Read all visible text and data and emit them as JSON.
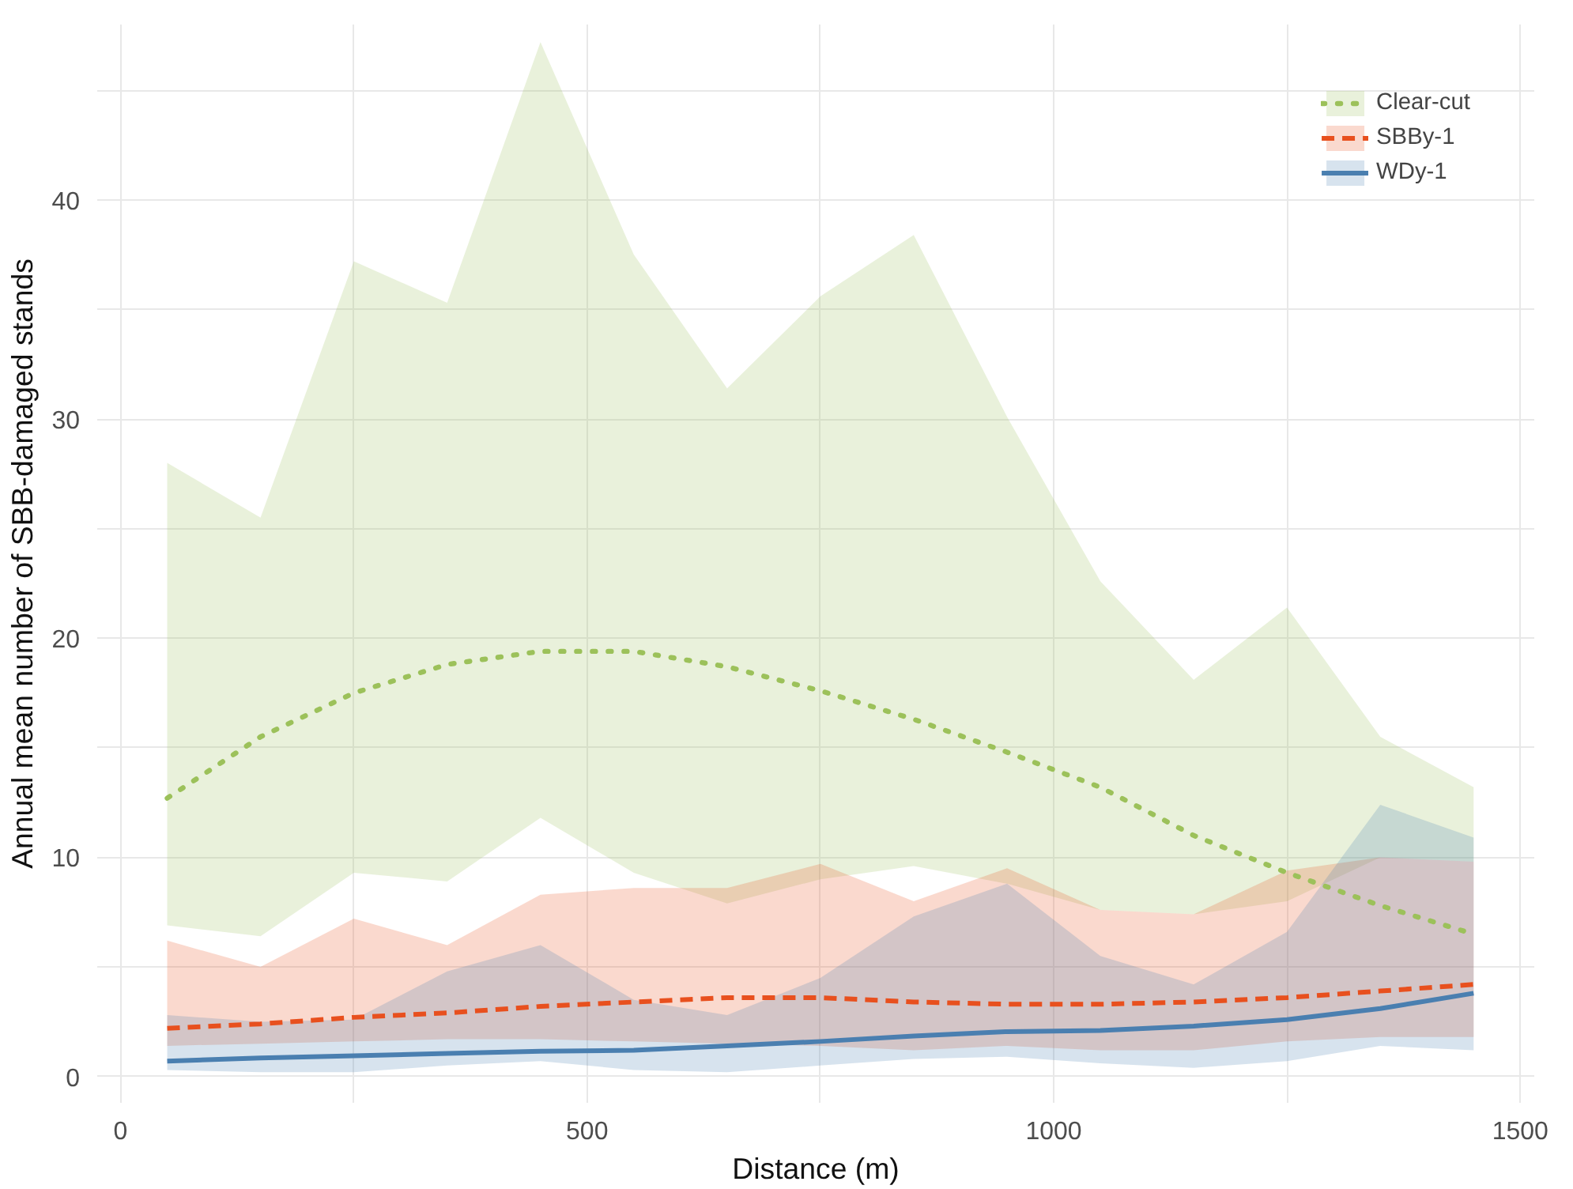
{
  "chart_data": {
    "type": "line",
    "xlabel": "Distance (m)",
    "ylabel": "Annual mean number of SBB-damaged stands",
    "x": [
      50,
      150,
      250,
      350,
      450,
      550,
      650,
      750,
      850,
      950,
      1050,
      1150,
      1250,
      1350,
      1450
    ],
    "xlim": [
      -25,
      1515
    ],
    "ylim": [
      -1.2,
      48
    ],
    "xticks": [
      0,
      {
        "value": 250,
        "label": null
      },
      500,
      {
        "value": 750,
        "label": null
      },
      1000,
      {
        "value": 1250,
        "label": null
      },
      1500
    ],
    "yticks": [
      0,
      {
        "value": 5,
        "label": null
      },
      10,
      {
        "value": 15,
        "label": null
      },
      20,
      {
        "value": 25,
        "label": null
      },
      30,
      {
        "value": 35,
        "label": null
      },
      40,
      {
        "value": 45,
        "label": null
      }
    ],
    "grid": true,
    "legend": "top right",
    "series": [
      {
        "name": "Clear-cut",
        "color": "#9cc15a",
        "line_style": "dotted",
        "values": [
          12.7,
          15.5,
          17.5,
          18.8,
          19.4,
          19.4,
          18.7,
          17.6,
          16.3,
          14.8,
          13.2,
          11.0,
          9.3,
          7.8,
          6.5
        ],
        "lower": [
          6.9,
          6.4,
          9.3,
          8.9,
          11.8,
          9.3,
          7.9,
          9.0,
          9.6,
          8.8,
          7.6,
          7.4,
          8.0,
          10.0,
          9.8
        ],
        "upper": [
          28,
          25.5,
          37.2,
          35.3,
          47.2,
          37.5,
          31.4,
          35.6,
          38.4,
          30.1,
          22.6,
          18.1,
          21.4,
          15.5,
          13.2
        ]
      },
      {
        "name": "SBBy-1",
        "color": "#e8501e",
        "line_style": "dashed",
        "values": [
          2.2,
          2.4,
          2.7,
          2.9,
          3.2,
          3.4,
          3.6,
          3.6,
          3.4,
          3.3,
          3.3,
          3.4,
          3.6,
          3.9,
          4.2
        ],
        "lower": [
          1.4,
          1.5,
          1.6,
          1.7,
          1.7,
          1.6,
          1.5,
          1.4,
          1.2,
          1.4,
          1.2,
          1.2,
          1.6,
          1.8,
          1.8
        ],
        "upper": [
          6.2,
          5.0,
          7.2,
          6.0,
          8.3,
          8.6,
          8.6,
          9.7,
          8.0,
          9.5,
          7.6,
          7.4,
          9.4,
          10.0,
          9.8
        ]
      },
      {
        "name": "WDy-1",
        "color": "#4a7fb0",
        "line_style": "solid",
        "values": [
          0.7,
          0.85,
          0.95,
          1.05,
          1.15,
          1.2,
          1.4,
          1.6,
          1.85,
          2.05,
          2.1,
          2.3,
          2.6,
          3.1,
          3.8
        ],
        "lower": [
          0.3,
          0.2,
          0.2,
          0.5,
          0.7,
          0.3,
          0.2,
          0.5,
          0.8,
          0.9,
          0.6,
          0.4,
          0.7,
          1.4,
          1.2
        ],
        "upper": [
          2.8,
          2.5,
          2.6,
          4.8,
          6.0,
          3.5,
          2.8,
          4.5,
          7.3,
          8.8,
          5.5,
          4.2,
          6.6,
          12.4,
          10.9
        ]
      }
    ]
  }
}
